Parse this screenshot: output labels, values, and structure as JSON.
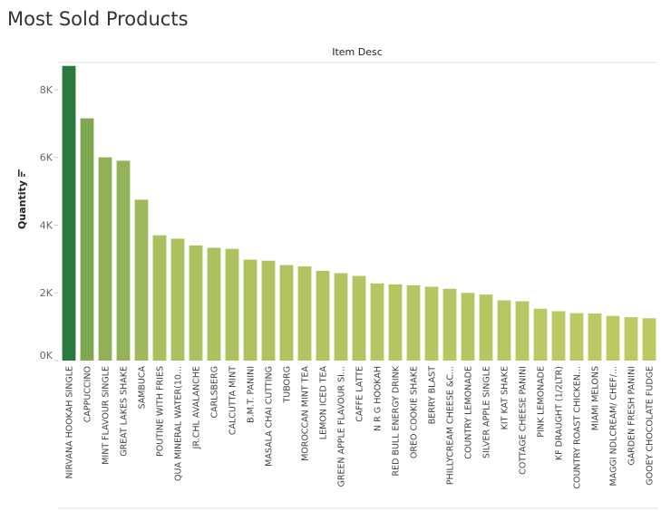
{
  "title": "Most Sold Products",
  "chart_data": {
    "type": "bar",
    "title": "Most Sold Products",
    "column_header": "Item Desc",
    "xlabel": "",
    "ylabel": "Quantity",
    "ylim": [
      0,
      8800
    ],
    "y_ticks": [
      0,
      2000,
      4000,
      6000,
      8000
    ],
    "y_tick_labels": [
      "0K",
      "2K",
      "4K",
      "6K",
      "8K"
    ],
    "color_start": "#2a7a3f",
    "color_end": "#bdc963",
    "categories": [
      "NIRVANA HOOKAH SINGLE",
      "CAPPUCCINO",
      "MINT FLAVOUR SINGLE",
      "GREAT LAKES SHAKE",
      "SAMBUCA",
      "POUTINE WITH FRIES",
      "QUA MINERAL WATER(10...",
      "JR.CHL AVALANCHE",
      "CARLSBERG",
      "CALCUTTA MINT",
      "B.M.T. PANINI",
      "MASALA CHAI CUTTING",
      "TUBORG",
      "MOROCCAN MINT TEA",
      "LEMON ICED TEA",
      "GREEN APPLE FLAVOUR SI...",
      "CAFFE LATTE",
      "N R G  HOOKAH",
      "RED BULL ENERGY DRINK",
      "OREO COOKIE SHAKE",
      "BERRY BLAST",
      "PHILLYCREAM CHEESE &C...",
      "COUNTRY LEMONADE",
      "SILVER APPLE SINGLE",
      "KIT KAT SHAKE",
      "COTTAGE CHEESE PANINI",
      "PINK LEMONADE",
      "KF DRAUGHT (1/2LTR)",
      "COUNTRY ROAST CHICKEN...",
      "MIAMI MELONS",
      "MAGGI NDLCREAM/ CHEF/...",
      "GARDEN FRESH PANINI",
      "GOOEY CHOCOLATE FUDGE"
    ],
    "values": [
      8700,
      7150,
      6000,
      5900,
      4750,
      3700,
      3600,
      3400,
      3330,
      3300,
      2980,
      2950,
      2820,
      2780,
      2650,
      2580,
      2500,
      2280,
      2250,
      2220,
      2180,
      2120,
      2000,
      1950,
      1780,
      1750,
      1530,
      1460,
      1400,
      1390,
      1320,
      1280,
      1250
    ]
  }
}
